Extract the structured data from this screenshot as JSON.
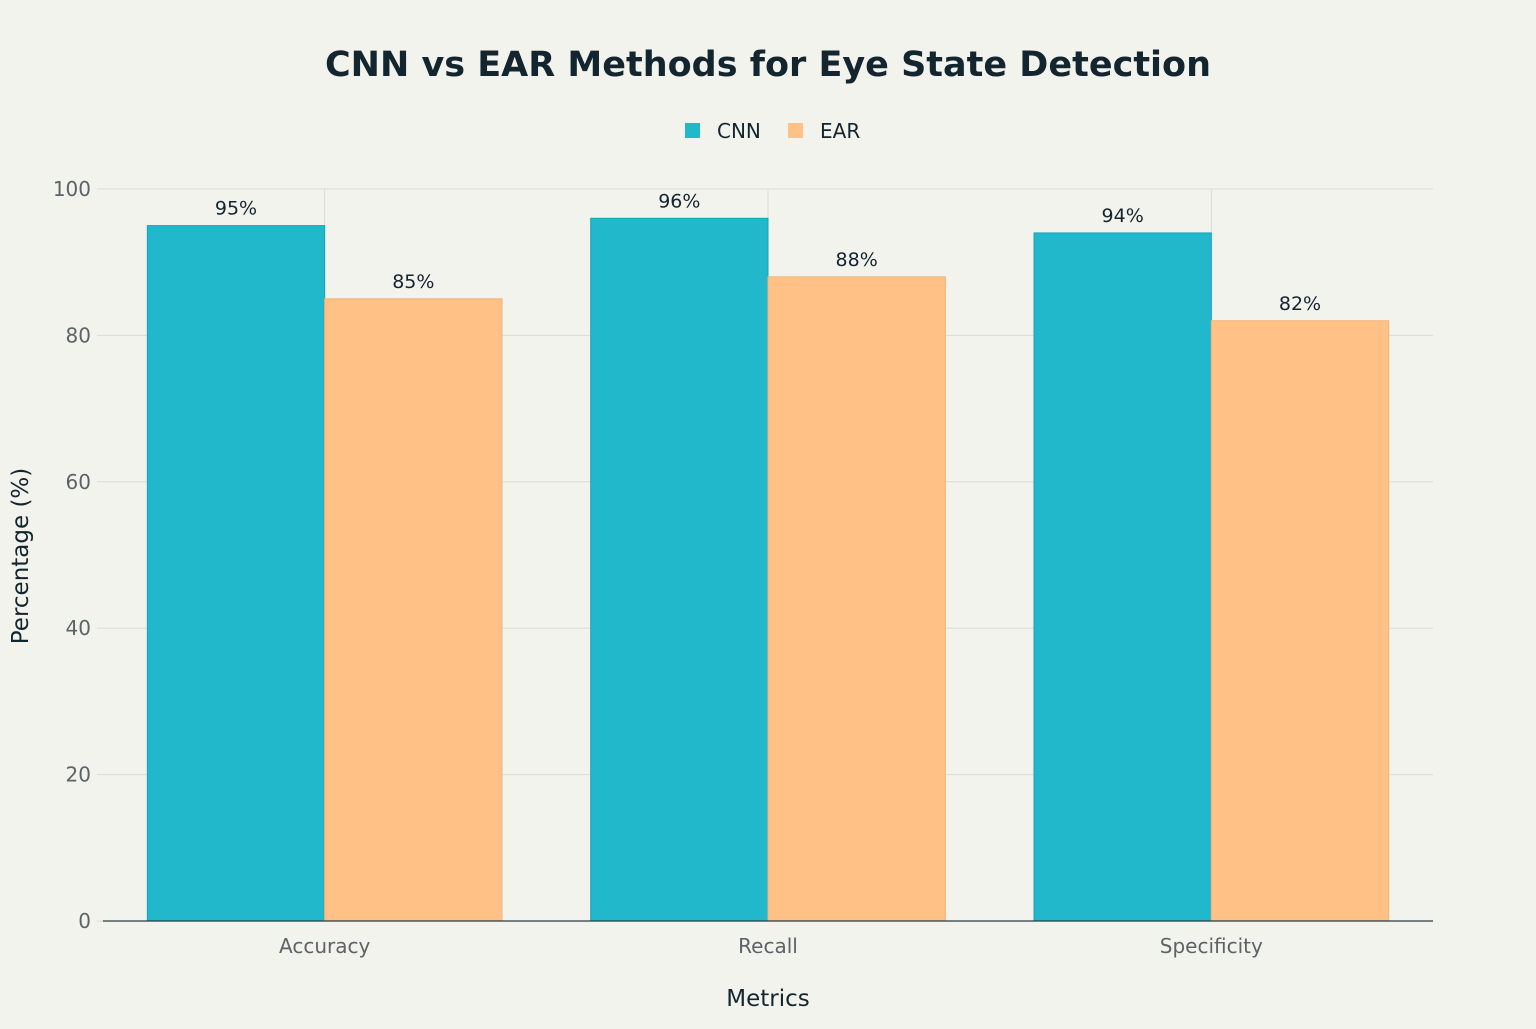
{
  "chart_data": {
    "type": "bar",
    "title": "CNN vs EAR Methods for Eye State Detection",
    "xlabel": "Metrics",
    "ylabel": "Percentage (%)",
    "categories": [
      "Accuracy",
      "Recall",
      "Specificity"
    ],
    "series": [
      {
        "name": "CNN",
        "color": "#21b8cc",
        "values": [
          95,
          96,
          94
        ],
        "labels": [
          "95%",
          "96%",
          "94%"
        ]
      },
      {
        "name": "EAR",
        "color": "#ffc185",
        "values": [
          85,
          88,
          82
        ],
        "labels": [
          "85%",
          "88%",
          "82%"
        ]
      }
    ],
    "ylim": [
      0,
      100
    ],
    "yticks": [
      0,
      20,
      40,
      60,
      80,
      100
    ],
    "grid": true,
    "legend": "top-center",
    "background": "#f3f3ee"
  }
}
